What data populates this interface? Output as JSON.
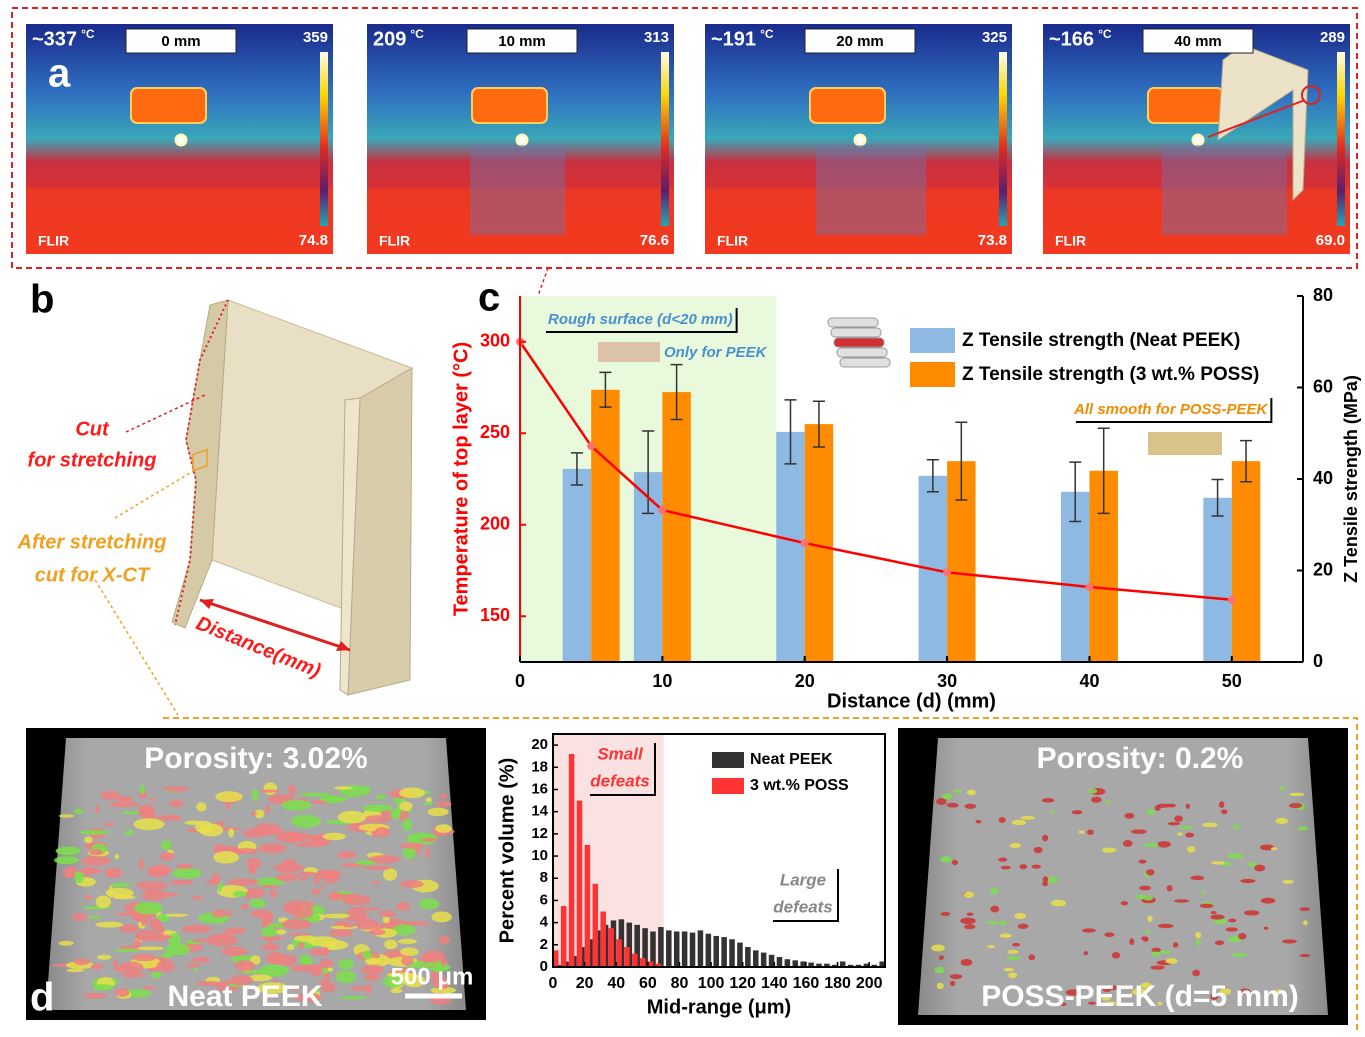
{
  "panel_a": {
    "label": "a",
    "images": [
      {
        "temperature": "~337",
        "unit": "°C",
        "distance": "0 mm",
        "scale_max": "359",
        "scale_min": "74.8",
        "brand": "FLIR"
      },
      {
        "temperature": "209",
        "unit": "°C",
        "distance": "10 mm",
        "scale_max": "313",
        "scale_min": "76.6",
        "brand": "FLIR"
      },
      {
        "temperature": "~191",
        "unit": "°C",
        "distance": "20 mm",
        "scale_max": "325",
        "scale_min": "73.8",
        "brand": "FLIR"
      },
      {
        "temperature": "~166",
        "unit": "°C",
        "distance": "40 mm",
        "scale_max": "289",
        "scale_min": "69.0",
        "brand": "FLIR"
      }
    ]
  },
  "panel_b": {
    "label": "b",
    "cut_label": [
      "Cut",
      "for stretching"
    ],
    "ct_label": [
      "After stretching",
      "cut for X-CT"
    ],
    "distance_label": "Distance(mm)"
  },
  "panel_d": {
    "label": "d",
    "left": {
      "porosity": "Porosity: 3.02%",
      "name": "Neat PEEK",
      "scale_bar": "500 μm"
    },
    "right": {
      "porosity": "Porosity: 0.2%",
      "name": "POSS-PEEK (d=5 mm)"
    }
  },
  "chart_data": [
    {
      "type": "bar",
      "panel_label": "c",
      "x_label": "Distance (d) (mm)",
      "y_label": "Temperature of top layer (°C)",
      "y2_label": "Z Tensile strength (MPa)",
      "x": [
        5,
        10,
        20,
        30,
        40,
        50
      ],
      "xlim": [
        0,
        55
      ],
      "xticks": [
        0,
        10,
        20,
        30,
        40,
        50
      ],
      "ylim": [
        125,
        325
      ],
      "yticks": [
        150,
        200,
        250,
        300
      ],
      "y2lim": [
        0,
        80
      ],
      "y2ticks": [
        0,
        20,
        40,
        60,
        80
      ],
      "y_axis_color": "#ff0000",
      "highlight_xlim": [
        0,
        18
      ],
      "highlight_color": "#e8f9dc",
      "legend": "upper right",
      "annotations": {
        "rough": "Rough surface (d<20 mm)",
        "peek_only": "Only for PEEK",
        "smooth": "All smooth for POSS-PEEK"
      },
      "series": [
        {
          "name": "Z Tensile strength (Neat PEEK)",
          "color": "#8db9e2",
          "axis": "y2",
          "values": [
            42.2,
            41.5,
            50.3,
            40.7,
            37.2,
            35.9
          ],
          "errors": [
            3.5,
            9,
            7,
            3.5,
            6.5,
            4
          ]
        },
        {
          "name": "Z Tensile strength (3 wt.% POSS)",
          "color": "#ff8c00",
          "axis": "y2",
          "values": [
            59.5,
            59,
            52,
            43.9,
            41.8,
            43.9
          ],
          "errors": [
            3.8,
            6,
            5,
            8.5,
            9.3,
            4.5
          ]
        },
        {
          "type": "line",
          "color": "#ff0000",
          "x": [
            0,
            5,
            10,
            20,
            30,
            40,
            50
          ],
          "values": [
            300,
            243,
            208,
            190,
            174,
            166,
            159
          ]
        }
      ]
    },
    {
      "type": "histogram",
      "x_label": "Mid-range (μm)",
      "y_label": "Percent volume (%)",
      "bins": [
        0,
        5,
        10,
        15,
        20,
        25,
        30,
        35,
        40,
        45,
        50,
        55,
        60,
        65,
        70,
        75,
        80,
        85,
        90,
        95,
        100,
        105,
        110,
        115,
        120,
        125,
        130,
        135,
        140,
        145,
        150,
        155,
        160,
        165,
        170,
        175,
        180,
        185,
        190,
        195,
        200,
        205,
        210
      ],
      "xlim": [
        0,
        210
      ],
      "xticks": [
        0,
        20,
        40,
        60,
        80,
        100,
        120,
        140,
        160,
        180,
        200
      ],
      "ylim": [
        0,
        21
      ],
      "yticks": [
        0,
        2,
        4,
        6,
        8,
        10,
        12,
        14,
        16,
        18,
        20
      ],
      "highlight_xlim": [
        0,
        70
      ],
      "highlight_color": "#fbe2e2",
      "legend": "upper right",
      "annotations": {
        "small": [
          "Small",
          "defeats"
        ],
        "large": [
          "Large",
          "defeats"
        ]
      },
      "series": [
        {
          "name": "Neat PEEK",
          "color": "#333333",
          "values": [
            0.2,
            0.5,
            1,
            1.8,
            2.5,
            3.3,
            3.8,
            4.2,
            4.3,
            4,
            3.8,
            3.5,
            3.2,
            3.6,
            3.3,
            3.2,
            3.2,
            3.1,
            3.3,
            3,
            2.8,
            2.7,
            2.5,
            2.2,
            1.8,
            1.5,
            1.3,
            1.1,
            0.9,
            0.7,
            0.6,
            0.5,
            0.4,
            0.3,
            0.3,
            0.2,
            0.5,
            0.2,
            0.2,
            0.3,
            0.2,
            0.5
          ]
        },
        {
          "name": "3 wt.% POSS",
          "color": "#ff3333",
          "values": [
            1.5,
            5.5,
            19.2,
            15,
            11,
            7.5,
            5,
            3.5,
            2.5,
            1.8,
            1.2,
            0.8,
            0.5,
            0.3,
            0,
            0,
            0,
            0,
            0,
            0,
            0,
            0,
            0,
            0,
            0,
            0,
            0,
            0,
            0,
            0,
            0,
            0,
            0,
            0,
            0,
            0,
            0,
            0,
            0,
            0,
            0,
            0
          ]
        }
      ]
    }
  ]
}
